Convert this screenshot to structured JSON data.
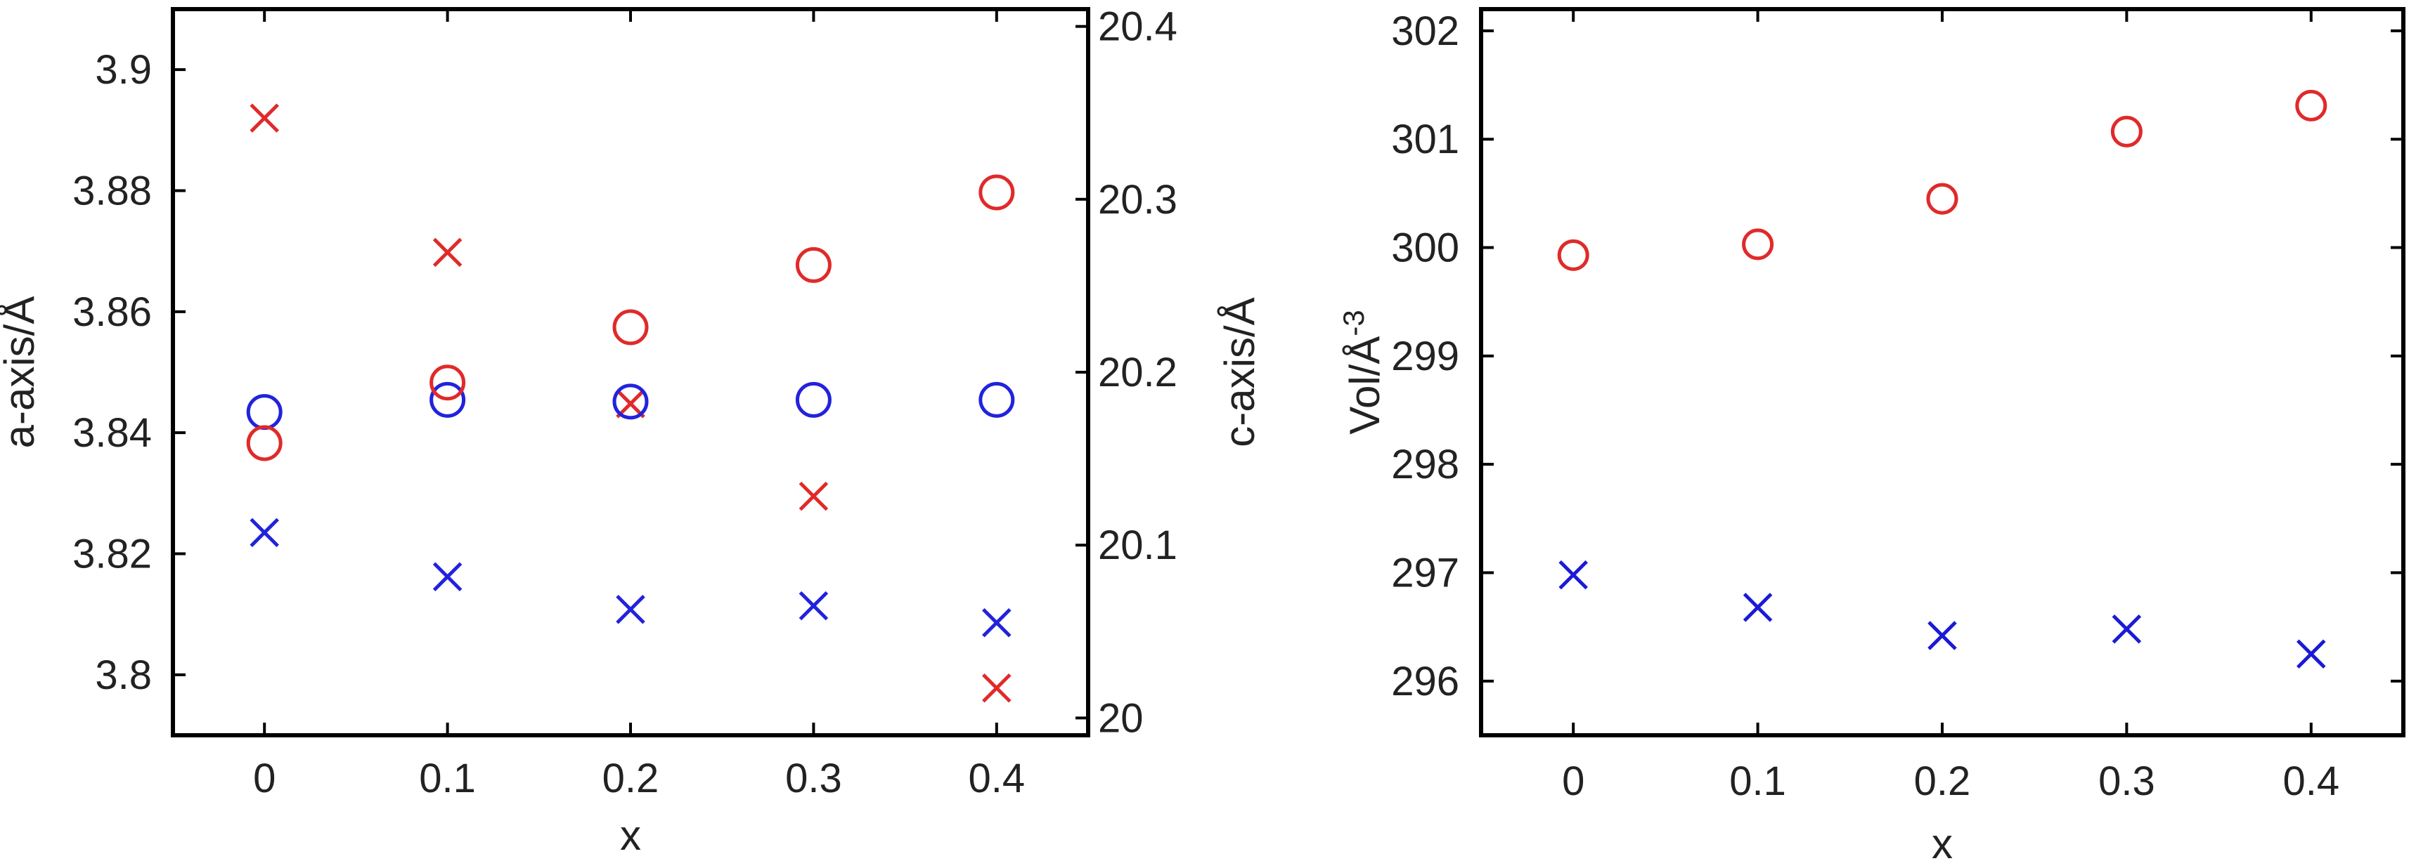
{
  "chart_data": [
    {
      "type": "scatter",
      "xlabel": "x",
      "ylabel_left": "a-axis/Å",
      "ylabel_right": "c-axis/Å",
      "x_ticks": [
        "0",
        "0.1",
        "0.2",
        "0.3",
        "0.4"
      ],
      "xlim": [
        -0.05,
        0.45
      ],
      "ylim_left": [
        3.79,
        3.91
      ],
      "ylim_right": [
        19.99,
        20.41
      ],
      "yticks_left": [
        "3.8",
        "3.82",
        "3.84",
        "3.86",
        "3.88",
        "3.9"
      ],
      "yticks_right": [
        "20",
        "20.1",
        "20.2",
        "20.3",
        "20.4"
      ],
      "grid": false,
      "series": [
        {
          "key": "a_blue",
          "marker": "x",
          "color": "#2222dd",
          "axis": "left",
          "x": [
            0,
            0.1,
            0.2,
            0.3,
            0.4
          ],
          "y": [
            3.8235,
            3.8162,
            3.8108,
            3.8114,
            3.8086
          ]
        },
        {
          "key": "a_red",
          "marker": "x",
          "color": "#e02a2a",
          "axis": "left",
          "x": [
            0,
            0.1,
            0.2,
            0.3,
            0.4
          ],
          "y": [
            3.892,
            3.8698,
            3.8448,
            3.8295,
            3.7978
          ]
        },
        {
          "key": "c_blue",
          "marker": "o",
          "color": "#2222dd",
          "axis": "right",
          "x": [
            0,
            0.1,
            0.2,
            0.3,
            0.4
          ],
          "y": [
            20.177,
            20.184,
            20.183,
            20.184,
            20.184
          ]
        },
        {
          "key": "c_red",
          "marker": "o",
          "color": "#e02a2a",
          "axis": "right",
          "x": [
            0,
            0.1,
            0.2,
            0.3,
            0.4
          ],
          "y": [
            20.159,
            20.194,
            20.226,
            20.262,
            20.304
          ]
        }
      ]
    },
    {
      "type": "scatter",
      "xlabel": "x",
      "ylabel": "Vol/Å",
      "ylabel_sup": "-3",
      "x_ticks": [
        "0",
        "0.1",
        "0.2",
        "0.3",
        "0.4"
      ],
      "xlim": [
        -0.05,
        0.45
      ],
      "ylim": [
        295.5,
        302.2
      ],
      "yticks": [
        "296",
        "297",
        "298",
        "299",
        "300",
        "301",
        "302"
      ],
      "grid": false,
      "series": [
        {
          "key": "vol_red",
          "marker": "o",
          "color": "#e02a2a",
          "x": [
            0,
            0.1,
            0.2,
            0.3,
            0.4
          ],
          "y": [
            299.93,
            300.03,
            300.45,
            301.07,
            301.31
          ]
        },
        {
          "key": "vol_blue",
          "marker": "x",
          "color": "#1a1ad6",
          "x": [
            0,
            0.1,
            0.2,
            0.3,
            0.4
          ],
          "y": [
            296.98,
            296.68,
            296.42,
            296.48,
            296.25
          ]
        }
      ]
    }
  ]
}
